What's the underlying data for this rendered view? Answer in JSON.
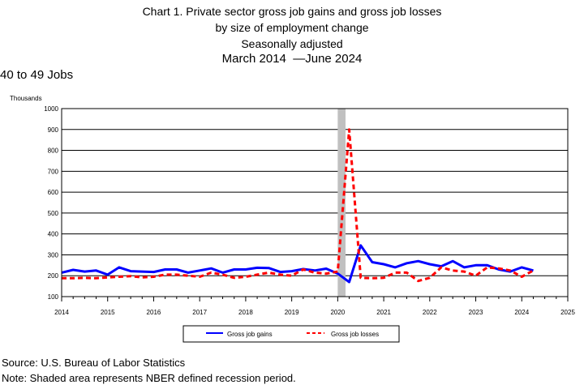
{
  "title": {
    "line1": "Chart 1. Private sector gross job gains and gross job losses",
    "line2": "by size of employment change",
    "line3": "Seasonally adjusted",
    "period_start": "March 2014",
    "period_end": "June 2024"
  },
  "subset_label": "40 to 49 Jobs",
  "units_label": "Thousands",
  "legend": {
    "gains_label": "Gross job gains",
    "losses_label": "Gross job losses"
  },
  "footer": {
    "source": "Source: U.S. Bureau of Labor Statistics",
    "note": "Note: Shaded area represents NBER defined recession period."
  },
  "colors": {
    "gains": "#0000ff",
    "losses": "#ff0000",
    "recession": "#c0c0c0"
  },
  "chart_data": {
    "type": "line",
    "title": "Chart 1. Private sector gross job gains and gross job losses by size of employment change",
    "ylabel": "Thousands",
    "xlim": [
      2014,
      2025
    ],
    "ylim": [
      100,
      1000
    ],
    "x_ticks": [
      2014,
      2015,
      2016,
      2017,
      2018,
      2019,
      2020,
      2021,
      2022,
      2023,
      2024,
      2025
    ],
    "y_ticks": [
      100,
      200,
      300,
      400,
      500,
      600,
      700,
      800,
      900,
      1000
    ],
    "grid": "horizontal",
    "legend_position": "bottom",
    "recession": [
      2020.0,
      2020.17
    ],
    "x": [
      2014.0,
      2014.25,
      2014.5,
      2014.75,
      2015.0,
      2015.25,
      2015.5,
      2015.75,
      2016.0,
      2016.25,
      2016.5,
      2016.75,
      2017.0,
      2017.25,
      2017.5,
      2017.75,
      2018.0,
      2018.25,
      2018.5,
      2018.75,
      2019.0,
      2019.25,
      2019.5,
      2019.75,
      2020.0,
      2020.25,
      2020.5,
      2020.75,
      2021.0,
      2021.25,
      2021.5,
      2021.75,
      2022.0,
      2022.25,
      2022.5,
      2022.75,
      2023.0,
      2023.25,
      2023.5,
      2023.75,
      2024.0,
      2024.25
    ],
    "series": [
      {
        "name": "Gross job gains",
        "values": [
          215,
          228,
          220,
          225,
          205,
          240,
          222,
          220,
          218,
          230,
          230,
          215,
          225,
          235,
          215,
          230,
          230,
          238,
          237,
          218,
          222,
          232,
          225,
          234,
          210,
          170,
          345,
          265,
          255,
          240,
          260,
          270,
          255,
          245,
          270,
          240,
          250,
          250,
          230,
          220,
          240,
          225
        ]
      },
      {
        "name": "Gross job losses",
        "values": [
          188,
          188,
          190,
          188,
          192,
          195,
          198,
          192,
          195,
          205,
          205,
          200,
          195,
          215,
          205,
          190,
          195,
          205,
          215,
          205,
          200,
          230,
          215,
          210,
          220,
          900,
          190,
          188,
          190,
          215,
          215,
          175,
          190,
          240,
          225,
          220,
          200,
          240,
          235,
          225,
          195,
          225
        ]
      }
    ]
  }
}
